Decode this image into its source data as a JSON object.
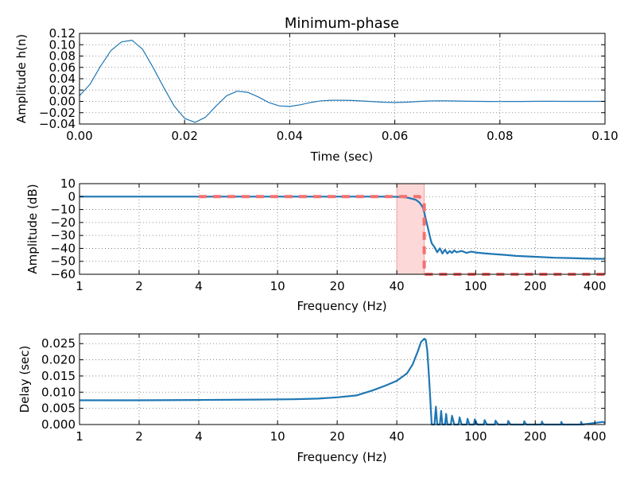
{
  "colors": {
    "series": "#1f77b4",
    "ideal": "#f47070",
    "band_fill": "#fdd8d8",
    "band_edge": "#f4a0a0"
  },
  "chart_data": [
    {
      "type": "line",
      "title": "Minimum-phase",
      "xlabel": "Time (sec)",
      "ylabel": "Amplitude h(n)",
      "xlim": [
        0.0,
        0.1
      ],
      "ylim": [
        -0.04,
        0.12
      ],
      "xscale": "linear",
      "grid": true,
      "xticks": [
        0.0,
        0.02,
        0.04,
        0.06,
        0.08,
        0.1
      ],
      "xticklabels": [
        "0.00",
        "0.02",
        "0.04",
        "0.06",
        "0.08",
        "0.10"
      ],
      "yticks": [
        -0.04,
        -0.02,
        0.0,
        0.02,
        0.04,
        0.06,
        0.08,
        0.1,
        0.12
      ],
      "yticklabels": [
        "−0.04",
        "−0.02",
        "0.00",
        "0.02",
        "0.04",
        "0.06",
        "0.08",
        "0.10",
        "0.12"
      ],
      "series": [
        {
          "x": [
            0.0,
            0.002,
            0.004,
            0.006,
            0.008,
            0.01,
            0.012,
            0.014,
            0.016,
            0.018,
            0.02,
            0.022,
            0.024,
            0.026,
            0.028,
            0.03,
            0.032,
            0.034,
            0.036,
            0.038,
            0.04,
            0.042,
            0.044,
            0.046,
            0.048,
            0.05,
            0.052,
            0.054,
            0.056,
            0.058,
            0.06,
            0.062,
            0.064,
            0.066,
            0.068,
            0.07,
            0.072,
            0.074,
            0.076,
            0.078,
            0.08,
            0.082,
            0.084,
            0.086,
            0.088,
            0.09,
            0.092,
            0.094,
            0.096,
            0.098,
            0.1
          ],
          "y": [
            0.01,
            0.03,
            0.062,
            0.09,
            0.105,
            0.108,
            0.092,
            0.06,
            0.025,
            -0.008,
            -0.03,
            -0.037,
            -0.028,
            -0.008,
            0.01,
            0.018,
            0.016,
            0.008,
            -0.002,
            -0.008,
            -0.009,
            -0.006,
            -0.002,
            0.001,
            0.002,
            0.002,
            0.0015,
            0.0005,
            -0.0005,
            -0.0015,
            -0.002,
            -0.0015,
            -0.0005,
            0.0005,
            0.001,
            0.0008,
            0.0005,
            0.0002,
            0.0,
            -0.0002,
            -0.0003,
            -0.0002,
            -0.0001,
            0.0,
            0.0001,
            0.0001,
            0.0,
            0.0,
            0.0,
            0.0,
            0.0
          ]
        }
      ]
    },
    {
      "type": "line",
      "title": "",
      "xlabel": "Frequency (Hz)",
      "ylabel": "Amplitude (dB)",
      "xlim": [
        1,
        450
      ],
      "ylim": [
        -60,
        10
      ],
      "xscale": "log",
      "grid": true,
      "xticks": [
        1,
        2,
        4,
        10,
        20,
        40,
        100,
        200,
        400
      ],
      "xticklabels": [
        "1",
        "2",
        "4",
        "10",
        "20",
        "40",
        "100",
        "200",
        "400"
      ],
      "yticks": [
        -60,
        -50,
        -40,
        -30,
        -20,
        -10,
        0,
        10
      ],
      "yticklabels": [
        "−60",
        "−50",
        "−40",
        "−30",
        "−20",
        "−10",
        "0",
        "10"
      ],
      "transition_band": [
        40,
        55
      ],
      "series": [
        {
          "x": [
            1,
            2,
            4,
            10,
            20,
            30,
            38,
            42,
            46,
            50,
            52,
            54,
            55,
            56,
            57,
            58,
            59,
            60,
            62,
            64,
            66,
            68,
            70,
            72,
            74,
            76,
            78,
            80,
            85,
            90,
            95,
            100,
            110,
            120,
            140,
            160,
            200,
            250,
            300,
            350,
            400,
            450
          ],
          "y": [
            0,
            0,
            0,
            0,
            0,
            0,
            -0.1,
            -0.3,
            -1.0,
            -2.5,
            -4.5,
            -8,
            -12,
            -17,
            -22,
            -27,
            -32,
            -36,
            -39,
            -43,
            -40,
            -44,
            -41,
            -44,
            -42,
            -43.5,
            -41.5,
            -43,
            -42,
            -43.5,
            -42.5,
            -43.2,
            -43.8,
            -44.3,
            -45,
            -45.8,
            -46.5,
            -47.2,
            -47.5,
            -47.8,
            -48,
            -48
          ]
        },
        {
          "x": [
            4,
            10,
            20,
            40,
            52,
            55,
            55,
            60,
            100,
            200,
            450
          ],
          "y": [
            0,
            0,
            0,
            0,
            0,
            -5,
            -60,
            -60,
            -60,
            -60,
            -60
          ]
        }
      ]
    },
    {
      "type": "line",
      "title": "",
      "xlabel": "Frequency (Hz)",
      "ylabel": "Delay (sec)",
      "xlim": [
        1,
        450
      ],
      "ylim": [
        0.0,
        0.028
      ],
      "xscale": "log",
      "grid": true,
      "xticks": [
        1,
        2,
        4,
        10,
        20,
        40,
        100,
        200,
        400
      ],
      "xticklabels": [
        "1",
        "2",
        "4",
        "10",
        "20",
        "40",
        "100",
        "200",
        "400"
      ],
      "yticks": [
        0.0,
        0.005,
        0.01,
        0.015,
        0.02,
        0.025
      ],
      "yticklabels": [
        "0.000",
        "0.005",
        "0.010",
        "0.015",
        "0.020",
        "0.025"
      ],
      "series": [
        {
          "x": [
            1,
            2,
            4,
            8,
            12,
            16,
            20,
            25,
            30,
            35,
            40,
            45,
            48,
            51,
            53,
            55,
            56,
            57,
            58,
            59,
            60,
            62,
            63,
            64,
            66,
            67,
            68,
            70,
            71,
            72,
            75,
            76,
            78,
            82,
            83,
            85,
            90,
            91,
            93,
            98,
            99,
            102,
            110,
            111,
            114,
            125,
            126,
            130,
            145,
            146,
            150,
            175,
            176,
            180,
            215,
            216,
            220,
            270,
            271,
            275,
            340,
            341,
            345,
            440,
            450
          ],
          "y": [
            0.0075,
            0.0075,
            0.0076,
            0.0077,
            0.0078,
            0.008,
            0.0084,
            0.009,
            0.0105,
            0.012,
            0.0135,
            0.0158,
            0.0185,
            0.0225,
            0.0255,
            0.0265,
            0.0262,
            0.023,
            0.016,
            0.008,
            0.0,
            0.0,
            0.0055,
            0.0,
            0.0,
            0.0042,
            0.0,
            0.0,
            0.0033,
            0.0,
            0.0,
            0.0027,
            0.0,
            0.0,
            0.0022,
            0.0,
            0.0,
            0.0018,
            0.0,
            0.0,
            0.0016,
            0.0,
            0.0,
            0.0014,
            0.0,
            0.0,
            0.0012,
            0.0,
            0.0,
            0.0011,
            0.0,
            0.0,
            0.001,
            0.0,
            0.0,
            0.0009,
            0.0,
            0.0,
            0.0008,
            0.0,
            0.0,
            0.0008,
            0.0,
            0.0008,
            0.0005
          ]
        }
      ]
    }
  ]
}
